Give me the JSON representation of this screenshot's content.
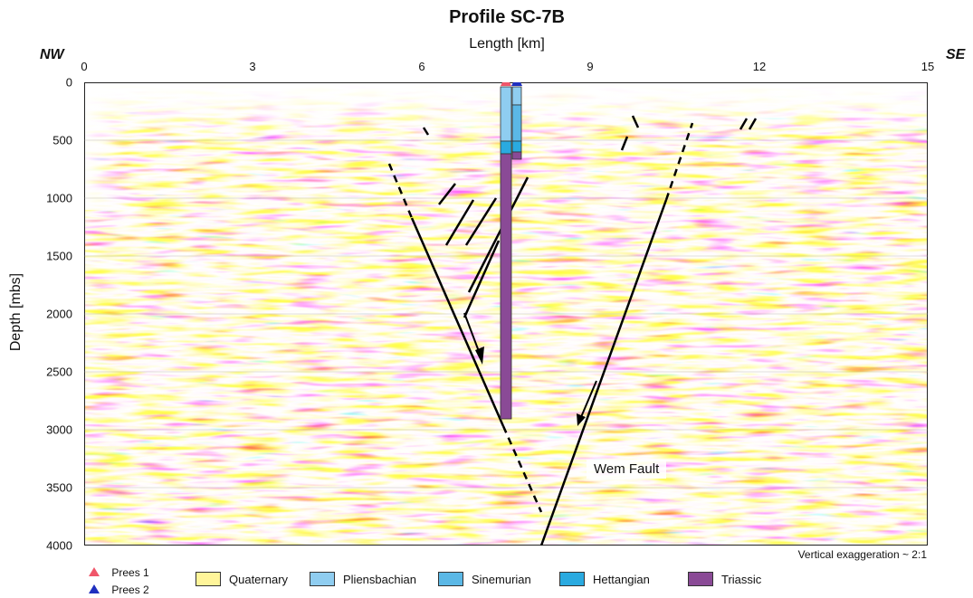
{
  "title": "Profile SC-7B",
  "x_axis": {
    "label": "Length [km]",
    "ticks": [
      "0",
      "3",
      "6",
      "9",
      "12",
      "15"
    ],
    "range_km": [
      0,
      15
    ]
  },
  "y_axis": {
    "label": "Depth [mbs]",
    "ticks": [
      "0",
      "500",
      "1000",
      "1500",
      "2000",
      "2500",
      "3000",
      "3500",
      "4000"
    ],
    "range_m": [
      0,
      4000
    ]
  },
  "directions": {
    "left": "NW",
    "right": "SE"
  },
  "fault_label": "Wem Fault",
  "vertical_exaggeration": "Vertical exaggeration ~ 2:1",
  "wells": [
    {
      "name": "Prees 1",
      "marker_color": "#f0566a",
      "x_km": 7.5
    },
    {
      "name": "Prees 2",
      "marker_color": "#1f2fbf",
      "x_km": 7.7
    }
  ],
  "legend": [
    {
      "label": "Quaternary",
      "color": "#fff59a"
    },
    {
      "label": "Pliensbachian",
      "color": "#8fcdf0"
    },
    {
      "label": "Sinemurian",
      "color": "#5bb8e6"
    },
    {
      "label": "Hettangian",
      "color": "#2aaae0"
    },
    {
      "label": "Triassic",
      "color": "#8a4a96"
    }
  ]
}
